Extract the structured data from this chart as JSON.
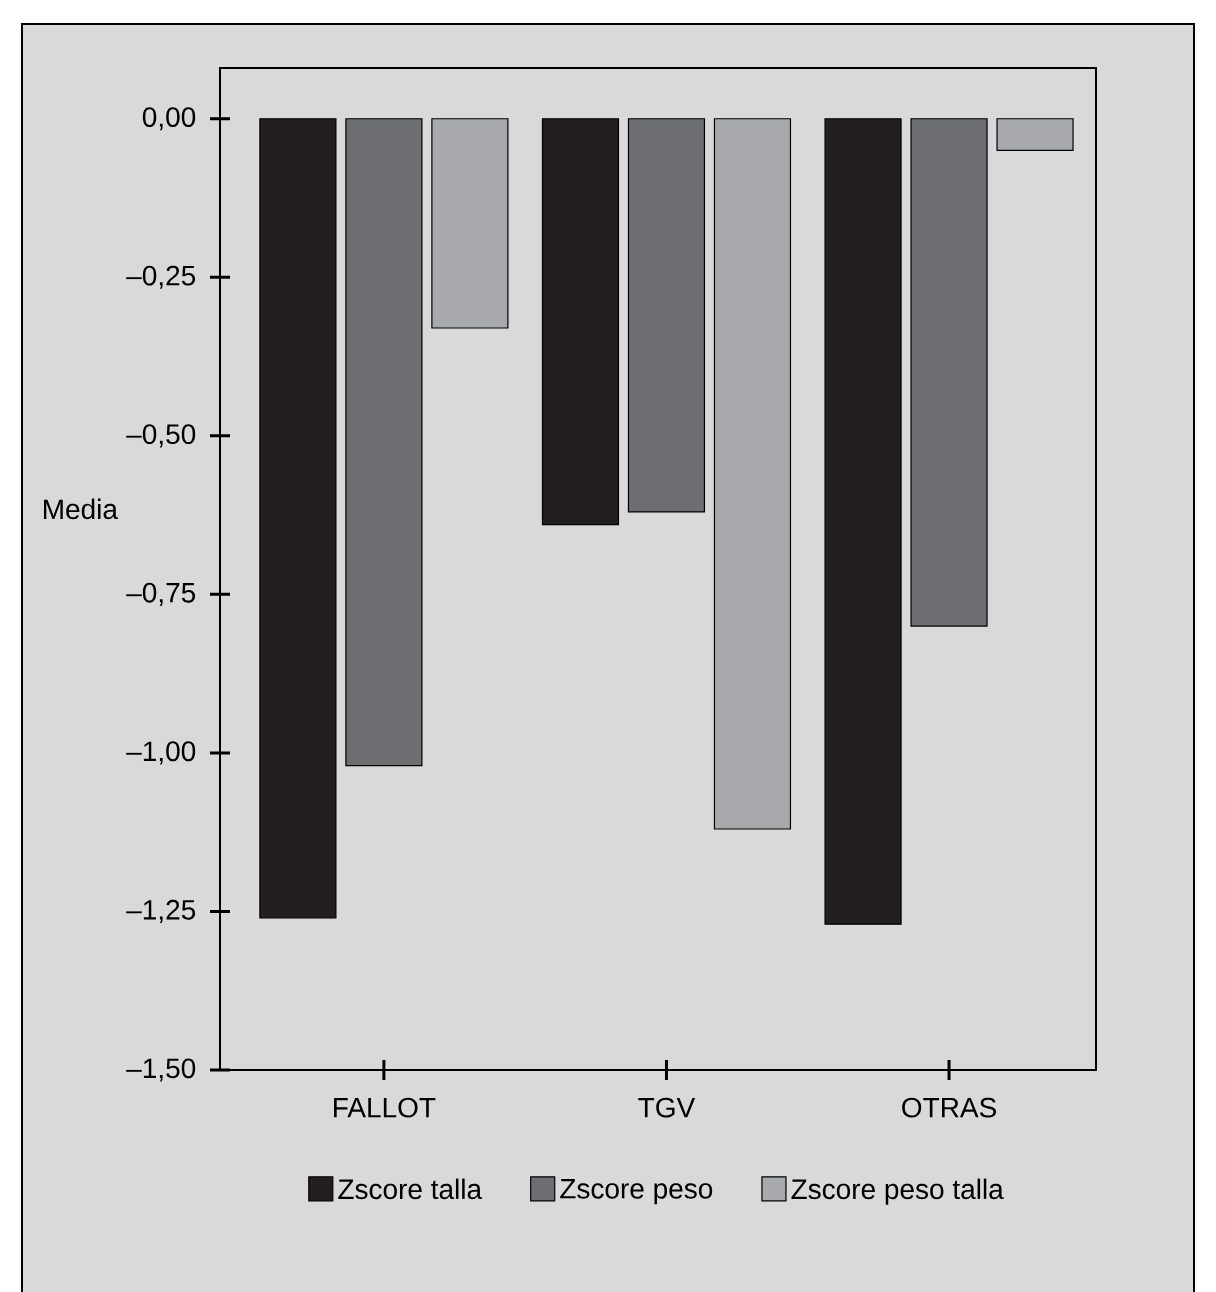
{
  "chart_data": {
    "type": "bar",
    "ylabel": "Media",
    "categories": [
      "FALLOT",
      "TGV",
      "OTRAS"
    ],
    "series": [
      {
        "name": "Zscore talla",
        "color": "#231f20",
        "values": [
          -1.26,
          -0.64,
          -1.27
        ]
      },
      {
        "name": "Zscore peso",
        "color": "#6d6e71",
        "values": [
          -1.02,
          -0.62,
          -0.8
        ]
      },
      {
        "name": "Zscore peso talla",
        "color": "#a7a9ac",
        "values": [
          -0.33,
          -1.12,
          -0.05
        ]
      }
    ],
    "ylim": [
      -1.5,
      0.08
    ],
    "yticks": [
      {
        "value": 0,
        "label": "0,00"
      },
      {
        "value": -0.25,
        "label": "–0,25"
      },
      {
        "value": -0.5,
        "label": "–0,50"
      },
      {
        "value": -0.75,
        "label": "–0,75"
      },
      {
        "value": -1,
        "label": "–1,00"
      },
      {
        "value": -1.25,
        "label": "–1,25"
      },
      {
        "value": -1.5,
        "label": "–1,50"
      }
    ],
    "legend": "bottom",
    "grid": false
  }
}
